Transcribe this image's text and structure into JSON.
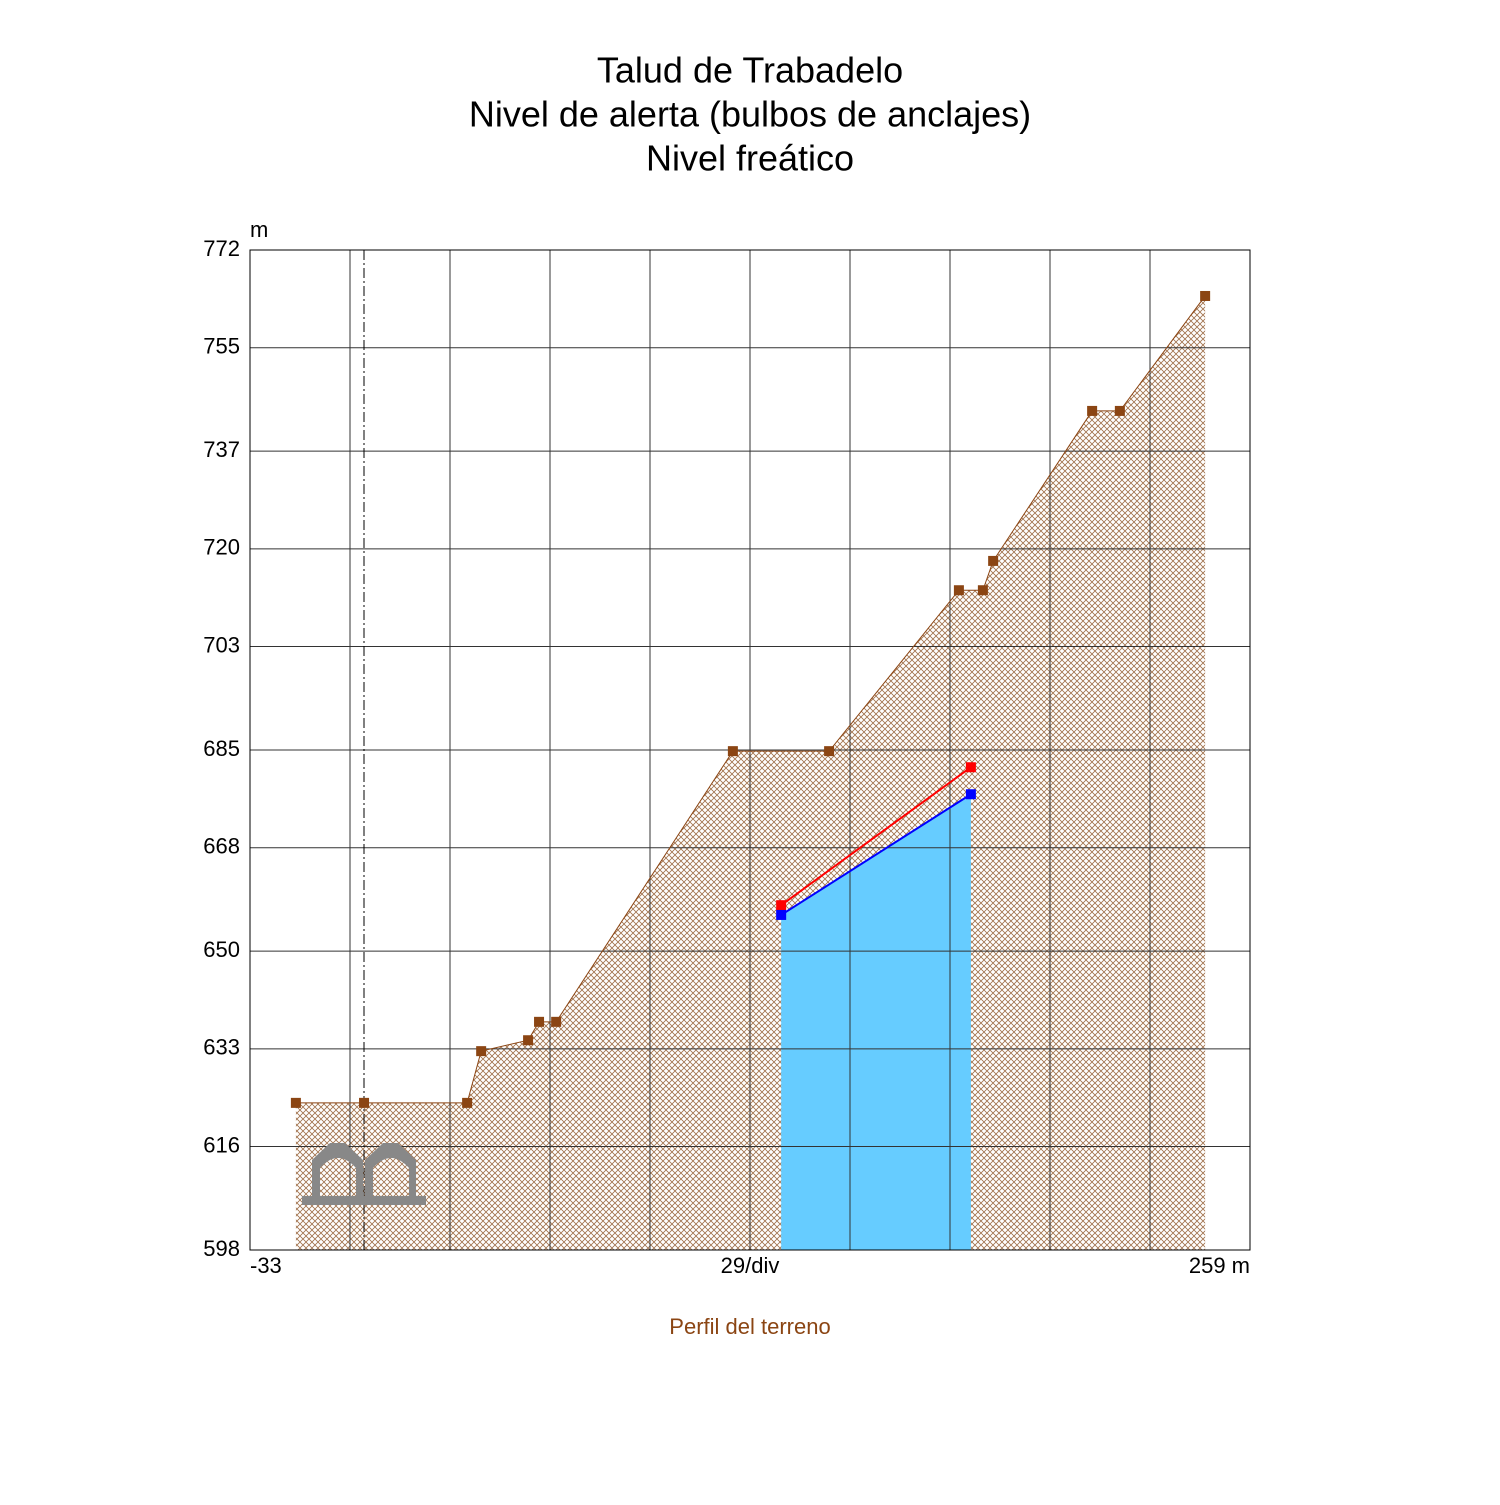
{
  "chart_data": {
    "type": "line",
    "title": [
      "Talud de Trabadelo",
      "Nivel de alerta (bulbos de anclajes)",
      "Nivel freático"
    ],
    "y_unit": "m",
    "legend": "Perfil del terreno",
    "legend_color": "#8b4513",
    "xlim": [
      -33,
      259
    ],
    "ylim": [
      598,
      772
    ],
    "xticks": [
      -33,
      -3.8,
      25.4,
      54.6,
      83.8,
      113,
      142.2,
      171.4,
      200.6,
      229.8,
      259
    ],
    "x_labels": [
      -33,
      {
        "value": 113,
        "label": "29/div"
      },
      {
        "value": 259,
        "label": "259 m"
      }
    ],
    "yticks": [
      598,
      616,
      633,
      650,
      668,
      685,
      703,
      720,
      737,
      755,
      772
    ],
    "grid": true,
    "series": [
      {
        "color": "#8b4513",
        "fill": "hatch",
        "x": [
          -19.6,
          0.3,
          30.4,
          34.5,
          48.2,
          51.4,
          56.4,
          108.0,
          136.1,
          174.0,
          181.0,
          184.0,
          212.9,
          221.0,
          245.9
        ],
        "values": [
          623.6,
          623.6,
          623.6,
          632.6,
          634.5,
          637.7,
          637.7,
          684.8,
          684.8,
          712.8,
          712.8,
          717.9,
          744.0,
          744.0,
          764.0
        ]
      },
      {
        "color": "#ff0000",
        "fill": "none",
        "x": [
          122.1,
          177.5
        ],
        "values": [
          658.0,
          682.0
        ]
      },
      {
        "color": "#0000ff",
        "fill": "#66ccff",
        "x": [
          122.1,
          177.5
        ],
        "values": [
          656.3,
          677.3
        ]
      }
    ]
  }
}
